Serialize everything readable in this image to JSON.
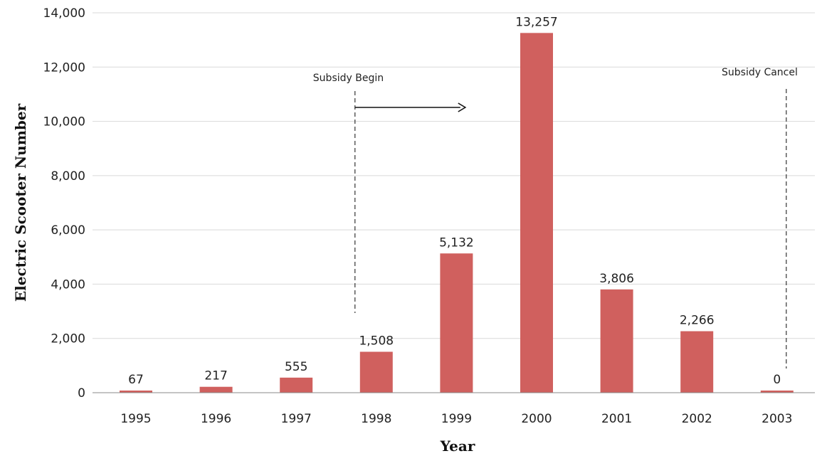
{
  "chart_data": {
    "type": "bar",
    "title": "",
    "xlabel": "Year",
    "ylabel": "Electric Scooter Number",
    "categories": [
      "1995",
      "1996",
      "1997",
      "1998",
      "1999",
      "2000",
      "2001",
      "2002",
      "2003"
    ],
    "values": [
      67,
      217,
      555,
      1508,
      5132,
      13257,
      3806,
      2266,
      0
    ],
    "data_labels": [
      "67",
      "217",
      "555",
      "1,508",
      "5,132",
      "13,257",
      "3,806",
      "2,266",
      "0"
    ],
    "ylim": [
      0,
      14000
    ],
    "yticks": [
      0,
      2000,
      4000,
      6000,
      8000,
      10000,
      12000,
      14000
    ],
    "ytick_labels": [
      "0",
      "2,000",
      "4,000",
      "6,000",
      "8,000",
      "10,000",
      "12,000",
      "14,000"
    ],
    "grid": true,
    "bar_color": "#d0605e",
    "annotations": [
      {
        "text": "Subsidy Begin",
        "at_category": "1998",
        "arrow": "right"
      },
      {
        "text": "Subsidy Cancel",
        "at_category": "2003"
      }
    ]
  }
}
